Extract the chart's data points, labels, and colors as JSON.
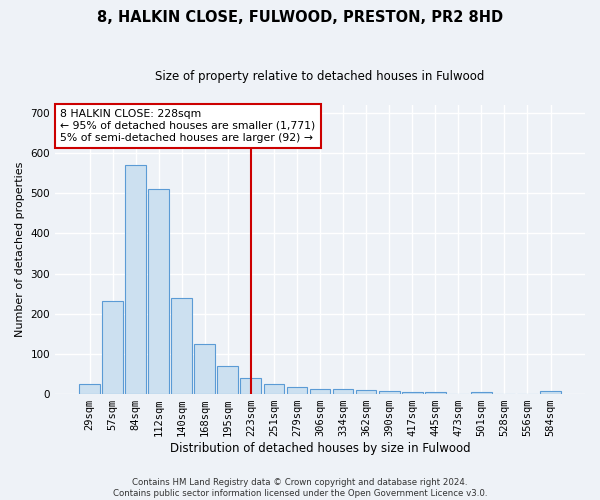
{
  "title": "8, HALKIN CLOSE, FULWOOD, PRESTON, PR2 8HD",
  "subtitle": "Size of property relative to detached houses in Fulwood",
  "xlabel": "Distribution of detached houses by size in Fulwood",
  "ylabel": "Number of detached properties",
  "categories": [
    "29sqm",
    "57sqm",
    "84sqm",
    "112sqm",
    "140sqm",
    "168sqm",
    "195sqm",
    "223sqm",
    "251sqm",
    "279sqm",
    "306sqm",
    "334sqm",
    "362sqm",
    "390sqm",
    "417sqm",
    "445sqm",
    "473sqm",
    "501sqm",
    "528sqm",
    "556sqm",
    "584sqm"
  ],
  "values": [
    25,
    233,
    570,
    510,
    240,
    125,
    70,
    40,
    25,
    17,
    13,
    12,
    10,
    7,
    5,
    5,
    0,
    5,
    0,
    0,
    7
  ],
  "bar_color": "#cce0f0",
  "bar_edge_color": "#5b9bd5",
  "vline_x_index": 7,
  "vline_color": "#cc0000",
  "annotation_text": "8 HALKIN CLOSE: 228sqm\n← 95% of detached houses are smaller (1,771)\n5% of semi-detached houses are larger (92) →",
  "annotation_box_color": "#ffffff",
  "annotation_box_edge": "#cc0000",
  "background_color": "#eef2f7",
  "footer_line1": "Contains HM Land Registry data © Crown copyright and database right 2024.",
  "footer_line2": "Contains public sector information licensed under the Open Government Licence v3.0.",
  "ylim": [
    0,
    720
  ],
  "yticks": [
    0,
    100,
    200,
    300,
    400,
    500,
    600,
    700
  ],
  "title_fontsize": 10.5,
  "subtitle_fontsize": 8.5,
  "ylabel_fontsize": 8,
  "xlabel_fontsize": 8.5,
  "tick_fontsize": 7.5,
  "footer_fontsize": 6.2,
  "annotation_fontsize": 7.8
}
